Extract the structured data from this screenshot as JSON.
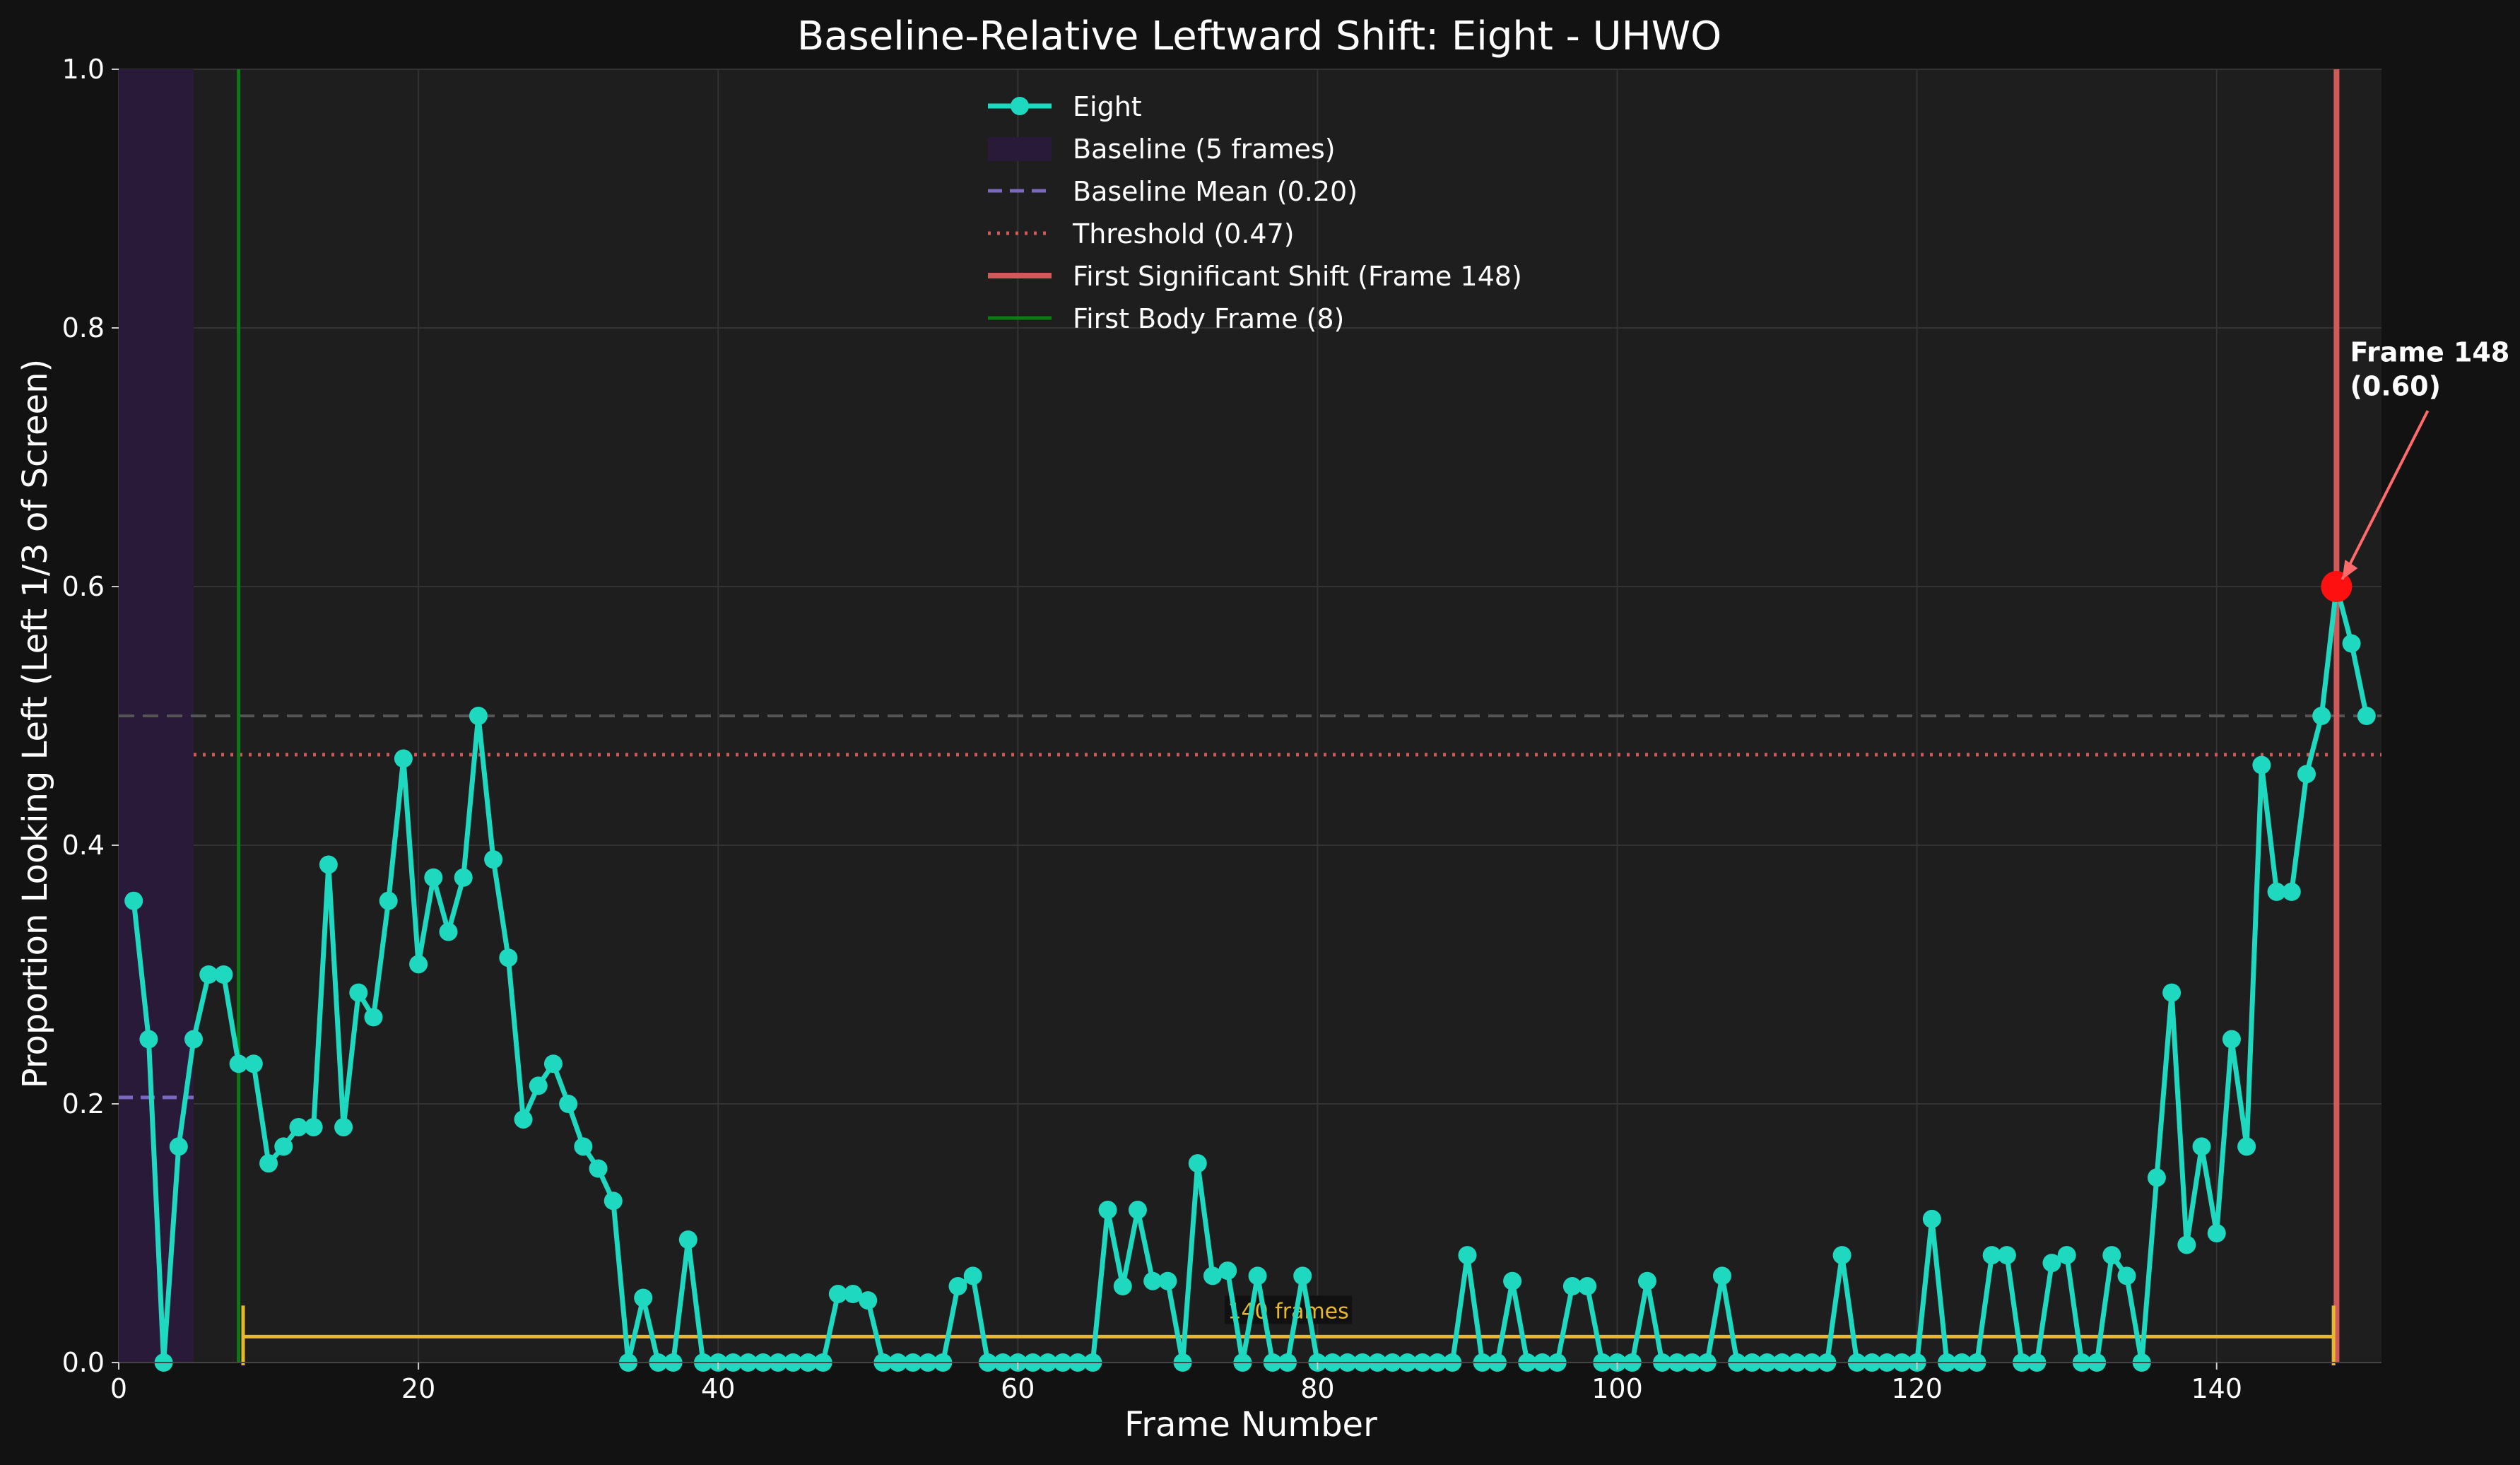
{
  "chart_data": {
    "type": "line",
    "title": "Baseline-Relative Leftward Shift: Eight - UHWO",
    "xlabel": "Frame Number",
    "ylabel": "Proportion Looking Left (Left 1/3 of Screen)",
    "xlim": [
      0,
      151
    ],
    "ylim": [
      0,
      1
    ],
    "xticks": [
      0,
      20,
      40,
      60,
      80,
      100,
      120,
      140
    ],
    "yticks": [
      0.0,
      0.2,
      0.4,
      0.6,
      0.8,
      1.0
    ],
    "xtick_labels": [
      "0",
      "20",
      "40",
      "60",
      "80",
      "100",
      "120",
      "140"
    ],
    "ytick_labels": [
      "0.0",
      "0.2",
      "0.4",
      "0.6",
      "0.8",
      "1.0"
    ],
    "grid": true,
    "legend_position": "top-center",
    "series": [
      {
        "name": "Eight",
        "color": "#1ed8c0",
        "x": [
          1,
          2,
          3,
          4,
          5,
          6,
          7,
          8,
          9,
          10,
          11,
          12,
          13,
          14,
          15,
          16,
          17,
          18,
          19,
          20,
          21,
          22,
          23,
          24,
          25,
          26,
          27,
          28,
          29,
          30,
          31,
          32,
          33,
          34,
          35,
          36,
          37,
          38,
          39,
          40,
          41,
          42,
          43,
          44,
          45,
          46,
          47,
          48,
          49,
          50,
          51,
          52,
          53,
          54,
          55,
          56,
          57,
          58,
          59,
          60,
          61,
          62,
          63,
          64,
          65,
          66,
          67,
          68,
          69,
          70,
          71,
          72,
          73,
          74,
          75,
          76,
          77,
          78,
          79,
          80,
          81,
          82,
          83,
          84,
          85,
          86,
          87,
          88,
          89,
          90,
          91,
          92,
          93,
          94,
          95,
          96,
          97,
          98,
          99,
          100,
          101,
          102,
          103,
          104,
          105,
          106,
          107,
          108,
          109,
          110,
          111,
          112,
          113,
          114,
          115,
          116,
          117,
          118,
          119,
          120,
          121,
          122,
          123,
          124,
          125,
          126,
          127,
          128,
          129,
          130,
          131,
          132,
          133,
          134,
          135,
          136,
          137,
          138,
          139,
          140,
          141,
          142,
          143,
          144,
          145,
          146,
          147,
          148,
          149,
          150
        ],
        "values": [
          0.357,
          0.25,
          0.0,
          0.167,
          0.25,
          0.3,
          0.3,
          0.231,
          0.231,
          0.154,
          0.167,
          0.182,
          0.182,
          0.385,
          0.182,
          0.286,
          0.267,
          0.357,
          0.467,
          0.308,
          0.375,
          0.333,
          0.375,
          0.5,
          0.389,
          0.313,
          0.188,
          0.214,
          0.231,
          0.2,
          0.167,
          0.15,
          0.125,
          0.0,
          0.05,
          0.0,
          0.0,
          0.095,
          0.0,
          0.0,
          0.0,
          0.0,
          0.0,
          0.0,
          0.0,
          0.0,
          0.0,
          0.053,
          0.053,
          0.048,
          0.0,
          0.0,
          0.0,
          0.0,
          0.0,
          0.059,
          0.067,
          0.0,
          0.0,
          0.0,
          0.0,
          0.0,
          0.0,
          0.0,
          0.0,
          0.118,
          0.059,
          0.118,
          0.063,
          0.063,
          0.0,
          0.154,
          0.067,
          0.071,
          0.0,
          0.067,
          0.0,
          0.0,
          0.067,
          0.0,
          0.0,
          0.0,
          0.0,
          0.0,
          0.0,
          0.0,
          0.0,
          0.0,
          0.0,
          0.083,
          0.0,
          0.0,
          0.063,
          0.0,
          0.0,
          0.0,
          0.059,
          0.059,
          0.0,
          0.0,
          0.0,
          0.063,
          0.0,
          0.0,
          0.0,
          0.0,
          0.067,
          0.0,
          0.0,
          0.0,
          0.0,
          0.0,
          0.0,
          0.0,
          0.083,
          0.0,
          0.0,
          0.0,
          0.0,
          0.0,
          0.111,
          0.0,
          0.0,
          0.0,
          0.083,
          0.083,
          0.0,
          0.0,
          0.077,
          0.083,
          0.0,
          0.0,
          0.083,
          0.067,
          0.0,
          0.143,
          0.286,
          0.091,
          0.167,
          0.1,
          0.25,
          0.167,
          0.462,
          0.364,
          0.364,
          0.455,
          0.5,
          0.6,
          0.556,
          0.5
        ]
      }
    ],
    "baseline_region": {
      "x_start": 0,
      "x_end": 5,
      "label": "Baseline (5 frames)",
      "color": "#2a1a3a"
    },
    "baseline_mean": {
      "value": 0.205,
      "x_start": 0,
      "x_end": 5,
      "label": "Baseline Mean (0.20)",
      "color": "#7b68c0"
    },
    "threshold": {
      "value": 0.47,
      "x_start": 5,
      "label": "Threshold (0.47)",
      "color": "#d05a5a"
    },
    "half_line": {
      "value": 0.5,
      "color": "#555555"
    },
    "first_shift": {
      "frame": 148,
      "value": 0.6,
      "label": "First Significant Shift (Frame 148)",
      "color": "#d05a5a",
      "marker_color": "#ff1010"
    },
    "first_body_frame": {
      "frame": 8,
      "label": "First Body Frame (8)",
      "color": "#0e7a16"
    },
    "annotation": {
      "line1": "Frame 148",
      "line2": "(0.60)",
      "text_x": 148.9,
      "text_y": 0.725
    },
    "span": {
      "x_start": 8.3,
      "x_end": 147.8,
      "y": 0.02,
      "label": "140 frames",
      "color": "#e6b830"
    },
    "legend": [
      {
        "key": "eight",
        "label": "Eight"
      },
      {
        "key": "baseline",
        "label": "Baseline (5 frames)"
      },
      {
        "key": "baseline-mean",
        "label": "Baseline Mean (0.20)"
      },
      {
        "key": "threshold",
        "label": "Threshold (0.47)"
      },
      {
        "key": "first-shift",
        "label": "First Significant Shift (Frame 148)"
      },
      {
        "key": "first-body",
        "label": "First Body Frame (8)"
      }
    ]
  }
}
